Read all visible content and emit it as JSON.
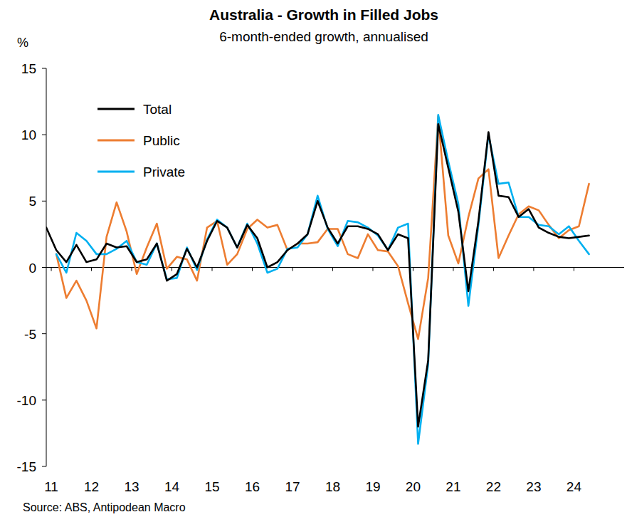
{
  "chart_data": {
    "type": "line",
    "title": "Australia - Growth in Filled Jobs",
    "subtitle": "6-month-ended growth, annualised",
    "y_label": "%",
    "source": "Source: ABS, Antipodean Macro",
    "x": [
      2010.875,
      2011.125,
      2011.375,
      2011.625,
      2011.875,
      2012.125,
      2012.375,
      2012.625,
      2012.875,
      2013.125,
      2013.375,
      2013.625,
      2013.875,
      2014.125,
      2014.375,
      2014.625,
      2014.875,
      2015.125,
      2015.375,
      2015.625,
      2015.875,
      2016.125,
      2016.375,
      2016.625,
      2016.875,
      2017.125,
      2017.375,
      2017.625,
      2017.875,
      2018.125,
      2018.375,
      2018.625,
      2018.875,
      2019.125,
      2019.375,
      2019.625,
      2019.875,
      2020.125,
      2020.375,
      2020.625,
      2020.875,
      2021.125,
      2021.375,
      2021.625,
      2021.875,
      2022.125,
      2022.375,
      2022.625,
      2022.875,
      2023.125,
      2023.375,
      2023.625,
      2023.875,
      2024.125,
      2024.375
    ],
    "series": [
      {
        "name": "Total",
        "color": "#000000",
        "values": [
          3.0,
          1.3,
          0.4,
          1.7,
          0.4,
          0.6,
          1.8,
          1.5,
          1.6,
          0.4,
          0.6,
          1.8,
          -1.0,
          -0.5,
          1.4,
          0.0,
          2.0,
          3.5,
          3.0,
          1.5,
          3.2,
          2.2,
          0.0,
          0.4,
          1.3,
          1.8,
          2.5,
          5.0,
          3.0,
          1.8,
          3.1,
          3.1,
          2.9,
          2.5,
          1.3,
          2.5,
          2.2,
          -12.0,
          -7.0,
          10.8,
          7.5,
          4.2,
          -1.8,
          3.5,
          10.2,
          5.4,
          5.3,
          3.8,
          4.4,
          3.0,
          2.6,
          2.3,
          2.2,
          2.3,
          2.4
        ]
      },
      {
        "name": "Public",
        "color": "#ED7D31",
        "values": [
          null,
          1.0,
          -2.3,
          -1.0,
          -2.5,
          -4.6,
          2.3,
          4.9,
          2.7,
          -0.5,
          1.5,
          3.3,
          -0.1,
          0.8,
          0.6,
          -1.0,
          3.0,
          3.5,
          0.2,
          1.0,
          2.9,
          3.6,
          3.0,
          3.2,
          1.3,
          1.8,
          1.8,
          1.9,
          2.9,
          2.9,
          1.0,
          0.7,
          2.5,
          1.3,
          1.2,
          0.1,
          -2.7,
          -5.4,
          -0.8,
          11.4,
          2.4,
          0.3,
          3.8,
          6.7,
          7.4,
          0.7,
          2.4,
          4.0,
          4.6,
          4.3,
          3.2,
          2.2,
          2.8,
          3.1,
          6.3
        ]
      },
      {
        "name": "Private",
        "color": "#00B0F0",
        "values": [
          null,
          1.0,
          -0.4,
          2.6,
          2.0,
          1.0,
          1.0,
          1.4,
          2.0,
          0.4,
          0.2,
          1.8,
          -0.9,
          -0.8,
          1.5,
          -0.2,
          2.1,
          3.6,
          3.0,
          1.5,
          3.3,
          1.8,
          -0.4,
          -0.1,
          1.4,
          1.5,
          2.5,
          5.4,
          2.9,
          1.6,
          3.5,
          3.4,
          3.0,
          2.4,
          1.3,
          3.0,
          3.3,
          -13.3,
          -7.3,
          11.5,
          8.0,
          4.8,
          -2.9,
          3.2,
          10.0,
          6.3,
          6.4,
          3.8,
          3.8,
          3.2,
          3.1,
          2.5,
          3.1,
          2.0,
          1.0
        ]
      }
    ],
    "xlim": [
      2010.875,
      2025.25
    ],
    "xticks": [
      {
        "value": 2011,
        "label": "11"
      },
      {
        "value": 2012,
        "label": "12"
      },
      {
        "value": 2013,
        "label": "13"
      },
      {
        "value": 2014,
        "label": "14"
      },
      {
        "value": 2015,
        "label": "15"
      },
      {
        "value": 2016,
        "label": "16"
      },
      {
        "value": 2017,
        "label": "17"
      },
      {
        "value": 2018,
        "label": "18"
      },
      {
        "value": 2019,
        "label": "19"
      },
      {
        "value": 2020,
        "label": "20"
      },
      {
        "value": 2021,
        "label": "21"
      },
      {
        "value": 2022,
        "label": "22"
      },
      {
        "value": 2023,
        "label": "23"
      },
      {
        "value": 2024,
        "label": "24"
      }
    ],
    "ylim": [
      -15,
      15
    ],
    "yticks": [
      -15,
      -10,
      -5,
      0,
      5,
      10,
      15
    ],
    "grid": false,
    "legend": "upper left"
  }
}
